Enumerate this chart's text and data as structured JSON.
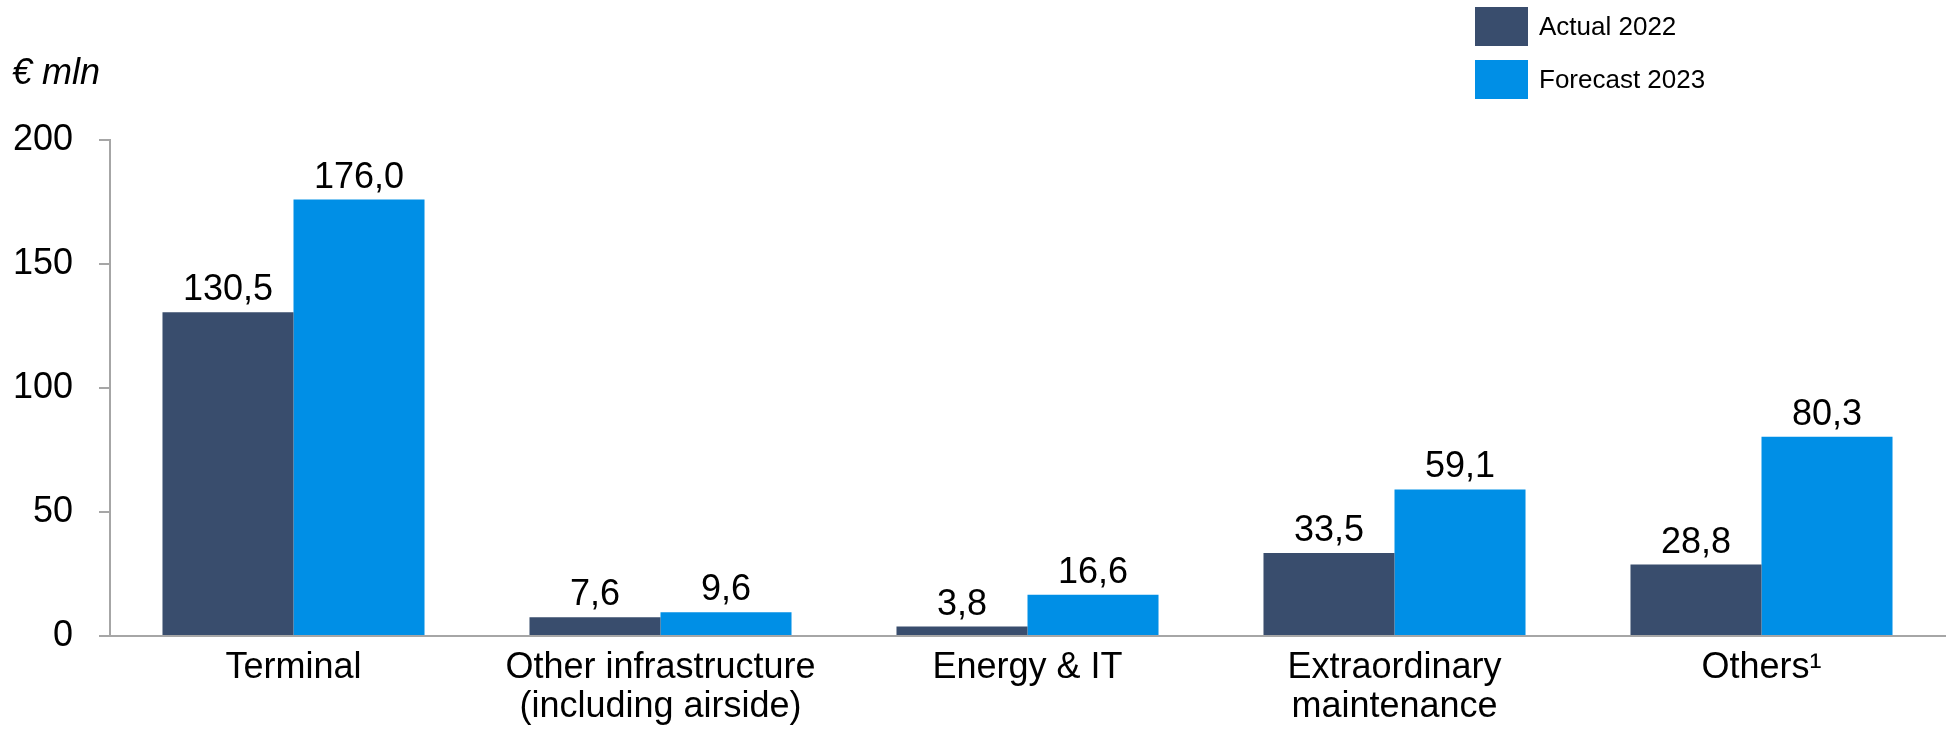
{
  "chart_data": {
    "type": "bar",
    "ylabel": "€ mln",
    "categories": [
      "Terminal",
      "Other infrastructure (including airside)",
      "Energy & IT",
      "Extraordinary maintenance",
      "Others¹"
    ],
    "series": [
      {
        "name": "Actual 2022",
        "color": "#394d6d",
        "values": [
          130.5,
          7.6,
          3.8,
          33.5,
          28.8
        ],
        "value_labels": [
          "130,5",
          "7,6",
          "3,8",
          "33,5",
          "28,8"
        ]
      },
      {
        "name": "Forecast 2023",
        "color": "#008fe6",
        "values": [
          176.0,
          9.6,
          16.6,
          59.1,
          80.3
        ],
        "value_labels": [
          "176,0",
          "9,6",
          "16,6",
          "59,1",
          "80,3"
        ]
      }
    ],
    "ylim": [
      0,
      200
    ],
    "yticks": [
      0,
      50,
      100,
      150,
      200
    ],
    "grid": false,
    "legend": "top right"
  }
}
